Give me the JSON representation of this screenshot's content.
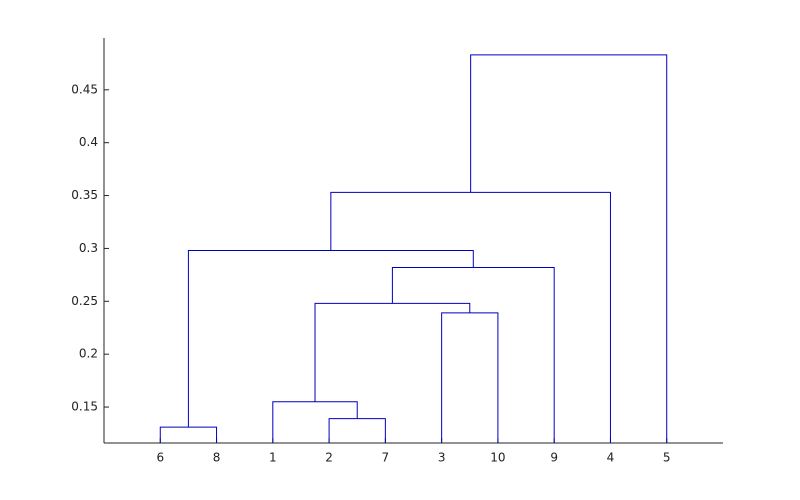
{
  "chart_data": {
    "type": "dendrogram",
    "color": "#0000c0",
    "ylim": [
      0.116,
      0.499
    ],
    "yticks": [
      0.15,
      0.2,
      0.25,
      0.3,
      0.35,
      0.4,
      0.45
    ],
    "tree": {
      "height": 0.483,
      "children": [
        {
          "height": 0.353,
          "children": [
            {
              "height": 0.298,
              "children": [
                {
                  "height": 0.131,
                  "children": [
                    "6",
                    "8"
                  ]
                },
                {
                  "height": 0.282,
                  "children": [
                    {
                      "height": 0.248,
                      "children": [
                        {
                          "height": 0.155,
                          "children": [
                            "1",
                            {
                              "height": 0.139,
                              "children": [
                                "2",
                                "7"
                              ]
                            }
                          ]
                        },
                        {
                          "height": 0.239,
                          "children": [
                            "3",
                            "10"
                          ]
                        }
                      ]
                    },
                    "9"
                  ]
                }
              ]
            },
            "4"
          ]
        },
        "5"
      ]
    }
  }
}
